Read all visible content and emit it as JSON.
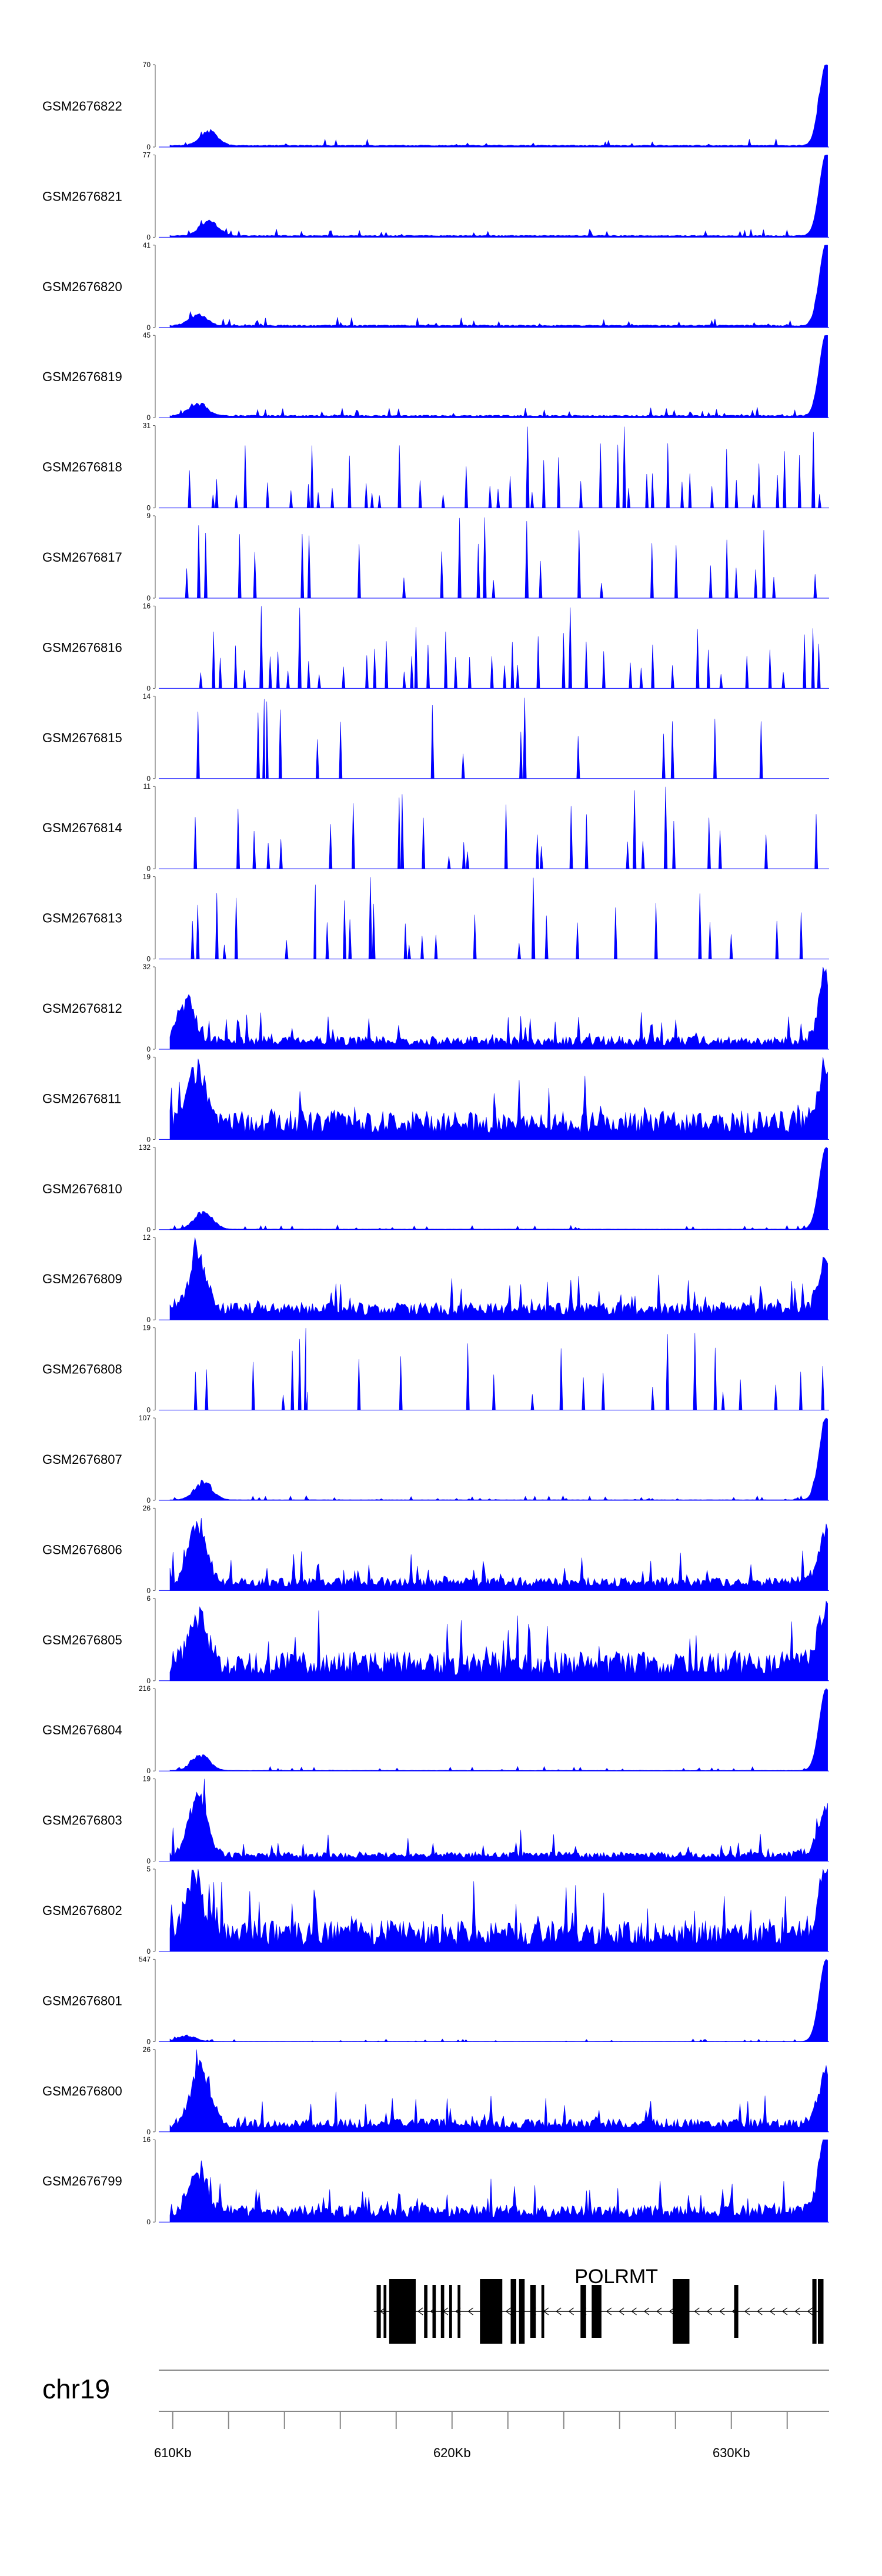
{
  "chart_data": {
    "type": "area",
    "title": "",
    "xlabel": "",
    "ylabel": "",
    "chromosome": "chr19",
    "xlim_kb": [
      609.5,
      633.5
    ],
    "ticks": [
      {
        "kb": 610,
        "label": "610Kb"
      },
      {
        "kb": 620,
        "label": "620Kb"
      },
      {
        "kb": 630,
        "label": "630Kb"
      }
    ],
    "minor_ticks_kb": [
      612,
      614,
      616,
      618,
      622,
      624,
      626,
      628,
      632
    ],
    "series_color": "#0000ff",
    "tracks": [
      {
        "name": "GSM2676822",
        "ymax": "70",
        "ymin": "0",
        "peak": 70,
        "bumps": [
          [
            611.3,
            0.2
          ]
        ],
        "end_peak": 1.0,
        "base": 0.05,
        "noise": 0.08,
        "seed": 11
      },
      {
        "name": "GSM2676821",
        "ymax": "77",
        "ymin": "0",
        "peak": 77,
        "bumps": [
          [
            611.3,
            0.22
          ]
        ],
        "end_peak": 1.0,
        "base": 0.05,
        "noise": 0.08,
        "seed": 12
      },
      {
        "name": "GSM2676820",
        "ymax": "41",
        "ymin": "0",
        "peak": 41,
        "bumps": [
          [
            610.9,
            0.15
          ]
        ],
        "end_peak": 1.0,
        "base": 0.06,
        "noise": 0.1,
        "seed": 13
      },
      {
        "name": "GSM2676819",
        "ymax": "45",
        "ymin": "0",
        "peak": 45,
        "bumps": [
          [
            610.9,
            0.18
          ]
        ],
        "end_peak": 1.0,
        "base": 0.06,
        "noise": 0.1,
        "seed": 14
      },
      {
        "name": "GSM2676818",
        "ymax": "31",
        "ymin": "0",
        "peak": 31,
        "sparse": true,
        "density": 0.8,
        "noise": 0.75,
        "seed": 15
      },
      {
        "name": "GSM2676817",
        "ymax": "9",
        "ymin": "0",
        "peak": 9,
        "sparse": true,
        "density": 0.35,
        "noise": 0.9,
        "seed": 16
      },
      {
        "name": "GSM2676816",
        "ymax": "16",
        "ymin": "0",
        "peak": 16,
        "sparse": true,
        "density": 0.7,
        "noise": 0.7,
        "seed": 17
      },
      {
        "name": "GSM2676815",
        "ymax": "14",
        "ymin": "0",
        "peak": 14,
        "sparse": true,
        "density": 0.18,
        "noise": 0.9,
        "seed": 18
      },
      {
        "name": "GSM2676814",
        "ymax": "11",
        "ymin": "0",
        "peak": 11,
        "sparse": true,
        "density": 0.35,
        "noise": 0.85,
        "seed": 19
      },
      {
        "name": "GSM2676813",
        "ymax": "19",
        "ymin": "0",
        "peak": 19,
        "sparse": true,
        "density": 0.35,
        "noise": 0.8,
        "seed": 20
      },
      {
        "name": "GSM2676812",
        "ymax": "32",
        "ymin": "0",
        "peak": 32,
        "bumps": [
          [
            610.5,
            0.55
          ]
        ],
        "end_peak": 0.7,
        "base": 0.15,
        "noise": 0.35,
        "seed": 21
      },
      {
        "name": "GSM2676811",
        "ymax": "9",
        "ymin": "0",
        "peak": 9,
        "bumps": [
          [
            610.8,
            0.8
          ]
        ],
        "end_peak": 0.55,
        "base": 0.25,
        "noise": 0.5,
        "seed": 22
      },
      {
        "name": "GSM2676810",
        "ymax": "132",
        "ymin": "0",
        "peak": 132,
        "bumps": [
          [
            611.1,
            0.25
          ]
        ],
        "end_peak": 1.0,
        "base": 0.02,
        "noise": 0.05,
        "seed": 23
      },
      {
        "name": "GSM2676809",
        "ymax": "12",
        "ymin": "0",
        "peak": 12,
        "bumps": [
          [
            610.9,
            0.75
          ]
        ],
        "end_peak": 0.5,
        "base": 0.2,
        "noise": 0.35,
        "seed": 24
      },
      {
        "name": "GSM2676808",
        "ymax": "19",
        "ymin": "0",
        "peak": 19,
        "sparse": true,
        "density": 0.25,
        "noise": 0.85,
        "seed": 25
      },
      {
        "name": "GSM2676807",
        "ymax": "107",
        "ymin": "0",
        "peak": 107,
        "bumps": [
          [
            611.1,
            0.25
          ]
        ],
        "end_peak": 1.0,
        "base": 0.02,
        "noise": 0.05,
        "seed": 26
      },
      {
        "name": "GSM2676806",
        "ymax": "26",
        "ymin": "0",
        "peak": 26,
        "bumps": [
          [
            610.9,
            0.8
          ]
        ],
        "end_peak": 0.55,
        "base": 0.15,
        "noise": 0.35,
        "seed": 27
      },
      {
        "name": "GSM2676805",
        "ymax": "6",
        "ymin": "0",
        "peak": 6,
        "bumps": [
          [
            610.9,
            0.7
          ]
        ],
        "end_peak": 0.65,
        "base": 0.22,
        "noise": 0.6,
        "seed": 28
      },
      {
        "name": "GSM2676804",
        "ymax": "216",
        "ymin": "0",
        "peak": 216,
        "bumps": [
          [
            611.0,
            0.22
          ]
        ],
        "end_peak": 1.0,
        "base": 0.02,
        "noise": 0.05,
        "seed": 29
      },
      {
        "name": "GSM2676803",
        "ymax": "19",
        "ymin": "0",
        "peak": 19,
        "bumps": [
          [
            610.9,
            0.85
          ]
        ],
        "end_peak": 0.45,
        "base": 0.12,
        "noise": 0.3,
        "seed": 30
      },
      {
        "name": "GSM2676802",
        "ymax": "5",
        "ymin": "0",
        "peak": 5,
        "bumps": [
          [
            610.8,
            0.75
          ]
        ],
        "end_peak": 0.7,
        "base": 0.25,
        "noise": 0.55,
        "seed": 31
      },
      {
        "name": "GSM2676801",
        "ymax": "547",
        "ymin": "0",
        "peak": 547,
        "bumps": [
          [
            610.5,
            0.08
          ]
        ],
        "end_peak": 1.0,
        "base": 0.01,
        "noise": 0.03,
        "seed": 32
      },
      {
        "name": "GSM2676800",
        "ymax": "26",
        "ymin": "0",
        "peak": 26,
        "bumps": [
          [
            611.0,
            0.85
          ]
        ],
        "end_peak": 0.55,
        "base": 0.15,
        "noise": 0.35,
        "seed": 33
      },
      {
        "name": "GSM2676799",
        "ymax": "16",
        "ymin": "0",
        "peak": 16,
        "bumps": [
          [
            610.9,
            0.6
          ]
        ],
        "end_peak": 1.0,
        "base": 0.2,
        "noise": 0.35,
        "seed": 34
      }
    ],
    "gene": {
      "name": "POLRMT",
      "strand": "-",
      "start_kb": 617.2,
      "end_kb": 633.3,
      "exons": [
        [
          617.3,
          617.45
        ],
        [
          617.55,
          617.65
        ],
        [
          617.75,
          618.7
        ],
        [
          619.0,
          619.12
        ],
        [
          619.3,
          619.42
        ],
        [
          619.6,
          619.72
        ],
        [
          619.9,
          620.0
        ],
        [
          620.2,
          620.3
        ],
        [
          621.0,
          621.8
        ],
        [
          622.1,
          622.3
        ],
        [
          622.4,
          622.6
        ],
        [
          622.8,
          623.0
        ],
        [
          623.2,
          623.3
        ],
        [
          624.6,
          624.8
        ],
        [
          625.0,
          625.35
        ],
        [
          627.9,
          628.5
        ],
        [
          630.1,
          630.25
        ],
        [
          632.9,
          633.05
        ],
        [
          633.1,
          633.3
        ]
      ],
      "thick_exons_index": [
        2,
        8,
        9,
        10,
        15,
        17,
        18
      ]
    }
  }
}
